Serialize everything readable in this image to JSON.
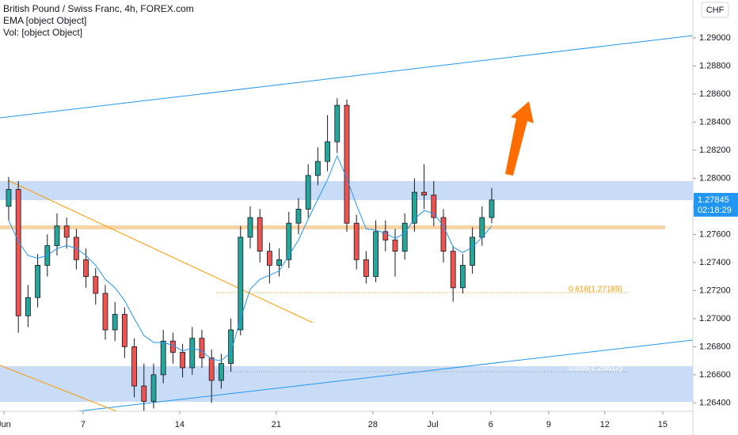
{
  "chart_data": {
    "type": "candlestick",
    "title": "British Pound / Swiss Franc, 4h, FOREX.com",
    "indicators": [
      "EMA [object Object]",
      "Vol: [object Object]"
    ],
    "currency_button": "CHF",
    "countdown": "02:18:29",
    "last_price_label": "1.27845",
    "annotations": [
      "0.618(1.27189)",
      "0.886(1.26612)"
    ],
    "up_color": "#26a69a",
    "down_color": "#ef5350",
    "ema_color": "#2196f3",
    "ylim": [
      1.2634,
      1.2927
    ],
    "yticks": [
      {
        "value": 1.264,
        "label": "1.26400"
      },
      {
        "value": 1.266,
        "label": "1.26600"
      },
      {
        "value": 1.268,
        "label": "1.26800"
      },
      {
        "value": 1.27,
        "label": "1.27000"
      },
      {
        "value": 1.272,
        "label": "1.27200"
      },
      {
        "value": 1.274,
        "label": "1.27400"
      },
      {
        "value": 1.276,
        "label": "1.27600"
      },
      {
        "value": 1.278,
        "label": "1.27800"
      },
      {
        "value": 1.28,
        "label": "1.28000"
      },
      {
        "value": 1.282,
        "label": "1.28200"
      },
      {
        "value": 1.284,
        "label": "1.28400"
      },
      {
        "value": 1.286,
        "label": "1.28600"
      },
      {
        "value": 1.288,
        "label": "1.28800"
      },
      {
        "value": 1.29,
        "label": "1.29000"
      }
    ],
    "xlim": [
      -0.2,
      35.66
    ],
    "xticks": [
      {
        "value": 0,
        "label": "Jun"
      },
      {
        "value": 4.1,
        "label": "7"
      },
      {
        "value": 9.1,
        "label": "14"
      },
      {
        "value": 14.1,
        "label": "21"
      },
      {
        "value": 19.1,
        "label": "28"
      },
      {
        "value": 22.2,
        "label": "Jul"
      },
      {
        "value": 25.2,
        "label": "6"
      },
      {
        "value": 28.2,
        "label": "9"
      },
      {
        "value": 31.1,
        "label": "12"
      },
      {
        "value": 34.1,
        "label": "15"
      }
    ],
    "x": [
      0.25,
      0.75,
      1.25,
      1.75,
      2.25,
      2.75,
      3.25,
      3.75,
      4.25,
      4.75,
      5.25,
      5.75,
      6.25,
      6.75,
      7.25,
      7.75,
      8.25,
      8.75,
      9.25,
      9.75,
      10.25,
      10.75,
      11.25,
      11.75,
      12.25,
      12.75,
      13.25,
      13.75,
      14.25,
      14.75,
      15.25,
      15.75,
      16.25,
      16.75,
      17.25,
      17.75,
      18.25,
      18.75,
      19.25,
      19.75,
      20.25,
      20.75,
      21.25,
      21.75,
      22.25,
      22.75,
      23.25,
      23.75,
      24.25,
      24.75,
      25.25
    ],
    "open": [
      1.278,
      1.2792,
      1.2702,
      1.2715,
      1.2738,
      1.2752,
      1.2766,
      1.2758,
      1.2742,
      1.273,
      1.2718,
      1.2692,
      1.2703,
      1.268,
      1.2652,
      1.2641,
      1.266,
      1.2684,
      1.2676,
      1.2665,
      1.2686,
      1.2672,
      1.2656,
      1.2668,
      1.2692,
      1.2758,
      1.2772,
      1.2748,
      1.2738,
      1.2742,
      1.2768,
      1.2778,
      1.2802,
      1.2812,
      1.2826,
      1.2852,
      1.2768,
      1.2742,
      1.273,
      1.2762,
      1.2756,
      1.2748,
      1.2768,
      1.279,
      1.2788,
      1.2772,
      1.2748,
      1.2722,
      1.2738,
      1.2758,
      1.2772
    ],
    "high": [
      1.2801,
      1.2798,
      1.2724,
      1.2746,
      1.276,
      1.2775,
      1.2772,
      1.2764,
      1.275,
      1.2736,
      1.2724,
      1.2712,
      1.2708,
      1.2686,
      1.2668,
      1.2668,
      1.2692,
      1.269,
      1.2682,
      1.2694,
      1.2692,
      1.2678,
      1.2675,
      1.27,
      1.2766,
      1.278,
      1.2778,
      1.2754,
      1.275,
      1.2776,
      1.2786,
      1.281,
      1.2822,
      1.2845,
      1.2857,
      1.2856,
      1.2774,
      1.2748,
      1.277,
      1.277,
      1.2764,
      1.2775,
      1.28,
      1.281,
      1.2798,
      1.2778,
      1.2752,
      1.2746,
      1.2765,
      1.278,
      1.2793
    ],
    "low": [
      1.277,
      1.269,
      1.2694,
      1.2708,
      1.273,
      1.2745,
      1.275,
      1.2735,
      1.2722,
      1.271,
      1.2685,
      1.2684,
      1.2672,
      1.2644,
      1.2632,
      1.2636,
      1.2654,
      1.2668,
      1.2658,
      1.266,
      1.2665,
      1.264,
      1.265,
      1.2662,
      1.2688,
      1.275,
      1.274,
      1.2725,
      1.273,
      1.2736,
      1.276,
      1.2772,
      1.2795,
      1.2805,
      1.2818,
      1.2762,
      1.2735,
      1.2725,
      1.2726,
      1.2748,
      1.273,
      1.2742,
      1.2762,
      1.2778,
      1.2766,
      1.274,
      1.2712,
      1.2718,
      1.2732,
      1.2752,
      1.2768
    ],
    "close": [
      1.2792,
      1.2702,
      1.2715,
      1.2738,
      1.2752,
      1.2766,
      1.2758,
      1.2742,
      1.273,
      1.2718,
      1.2692,
      1.2703,
      1.268,
      1.2652,
      1.2641,
      1.266,
      1.2684,
      1.2676,
      1.2665,
      1.2686,
      1.2672,
      1.2656,
      1.2668,
      1.2692,
      1.2758,
      1.2772,
      1.2748,
      1.2738,
      1.2742,
      1.2768,
      1.2778,
      1.2802,
      1.2812,
      1.2826,
      1.2852,
      1.2768,
      1.2742,
      1.273,
      1.2762,
      1.2756,
      1.2748,
      1.2768,
      1.279,
      1.2788,
      1.2772,
      1.2748,
      1.2722,
      1.2738,
      1.2758,
      1.2772,
      1.27845
    ],
    "ema": [
      1.277,
      1.2755,
      1.2745,
      1.2743,
      1.2745,
      1.275,
      1.2752,
      1.275,
      1.2745,
      1.2738,
      1.2728,
      1.2722,
      1.2713,
      1.27,
      1.2688,
      1.2683,
      1.2683,
      1.2681,
      1.2677,
      1.2679,
      1.2677,
      1.2671,
      1.267,
      1.2676,
      1.27,
      1.2721,
      1.2728,
      1.2731,
      1.2734,
      1.2745,
      1.2756,
      1.2771,
      1.2785,
      1.2799,
      1.2816,
      1.28,
      1.2781,
      1.2764,
      1.2763,
      1.2761,
      1.2757,
      1.2761,
      1.2771,
      1.2777,
      1.2775,
      1.2766,
      1.2751,
      1.2747,
      1.2751,
      1.2758,
      1.2766
    ]
  }
}
